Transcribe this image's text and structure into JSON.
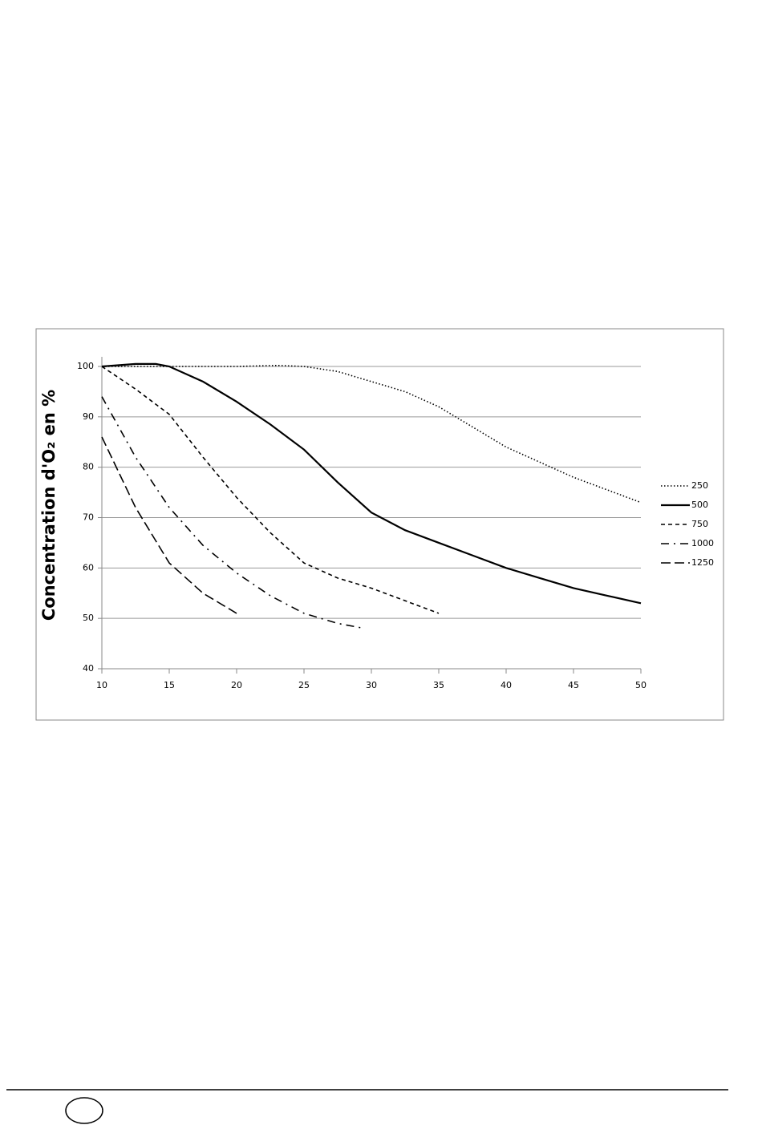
{
  "chart_data": {
    "type": "line",
    "y_label": "Concentration d'O₂ en %",
    "xlim": [
      10,
      50
    ],
    "xticks": [
      10,
      15,
      20,
      25,
      30,
      35,
      40,
      45,
      50
    ],
    "ylim": [
      40,
      100
    ],
    "yticks": [
      40,
      50,
      60,
      70,
      80,
      90,
      100
    ],
    "grid": true,
    "legend": "right",
    "series": [
      {
        "name": "250",
        "color": "#000000",
        "line_style": "dotted",
        "x": [
          10,
          12.5,
          15,
          17.5,
          20,
          23,
          25,
          27.5,
          30,
          32.5,
          35,
          37.5,
          40,
          42.5,
          45,
          47.5,
          50
        ],
        "values": [
          100,
          100,
          100,
          100,
          100,
          100.2,
          100,
          99,
          97,
          95,
          92,
          88,
          84,
          81,
          78,
          75.5,
          73
        ]
      },
      {
        "name": "500",
        "color": "#000000",
        "line_style": "solid",
        "x": [
          10,
          12.5,
          14,
          15,
          17.5,
          20,
          22.5,
          25,
          27.5,
          30,
          32.5,
          35,
          37.5,
          40,
          42.5,
          45,
          47.5,
          50
        ],
        "values": [
          100,
          100.5,
          100.5,
          100,
          97,
          93,
          88.5,
          83.5,
          77,
          71,
          67.5,
          65,
          62.5,
          60,
          58,
          56,
          54.5,
          53
        ]
      },
      {
        "name": "750",
        "color": "#000000",
        "line_style": "dashed",
        "x": [
          10,
          12.5,
          15,
          17.5,
          20,
          22.5,
          25,
          27.5,
          30,
          32.5,
          35
        ],
        "values": [
          100,
          95.5,
          90.5,
          82,
          74,
          67,
          61,
          58,
          56,
          53.5,
          51
        ]
      },
      {
        "name": "1000",
        "color": "#000000",
        "line_style": "dash-dot",
        "x": [
          10,
          12.5,
          15,
          17.5,
          20,
          22.5,
          25,
          27.5,
          29.5
        ],
        "values": [
          94,
          82,
          72,
          64.5,
          59,
          54.5,
          51,
          49,
          48
        ]
      },
      {
        "name": "1250",
        "color": "#000000",
        "line_style": "long-dash",
        "x": [
          10,
          12.5,
          15,
          17.5,
          20
        ],
        "values": [
          86,
          72,
          61,
          55,
          51
        ]
      }
    ]
  }
}
